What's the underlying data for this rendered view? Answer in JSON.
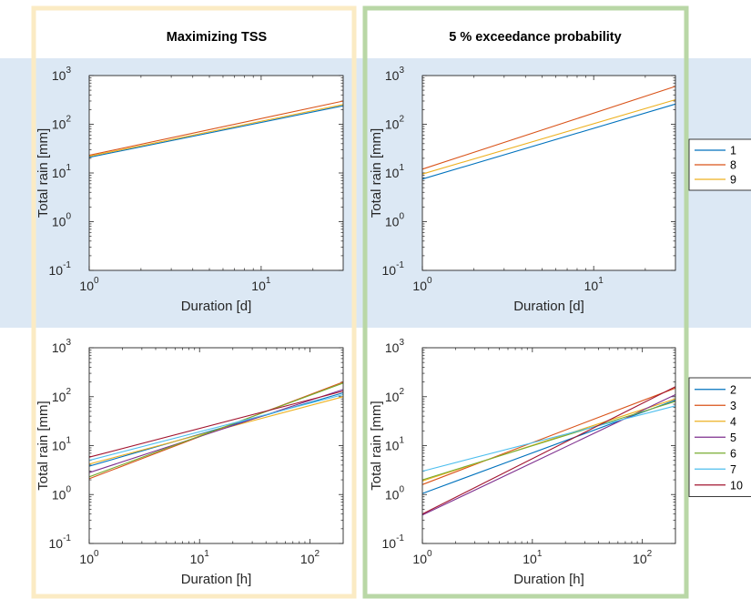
{
  "columns": [
    {
      "title": "Maximizing TSS",
      "frame_color": "#fbebc4"
    },
    {
      "title": "5 % exceedance probability",
      "frame_color": "#b9d7a6"
    }
  ],
  "band_color": "#dce8f4",
  "charts": [
    {
      "id": "tss-daily",
      "type": "line",
      "xscale": "log",
      "yscale": "log",
      "xlabel": "Duration [d]",
      "ylabel": "Total rain [mm]",
      "xlim": [
        1,
        30
      ],
      "ylim": [
        0.1,
        1000
      ],
      "xticks": [
        {
          "v": 1,
          "b": "10",
          "e": "0"
        },
        {
          "v": 10,
          "b": "10",
          "e": "1"
        }
      ],
      "yticks": [
        {
          "v": 0.1,
          "b": "10",
          "e": "-1"
        },
        {
          "v": 1,
          "b": "10",
          "e": "0"
        },
        {
          "v": 10,
          "b": "10",
          "e": "1"
        },
        {
          "v": 100,
          "b": "10",
          "e": "2"
        },
        {
          "v": 1000,
          "b": "10",
          "e": "3"
        }
      ],
      "series": [
        {
          "name": "1",
          "x": [
            1,
            30
          ],
          "y": [
            21,
            240
          ]
        },
        {
          "name": "8",
          "x": [
            1,
            30
          ],
          "y": [
            23,
            300
          ]
        },
        {
          "name": "9",
          "x": [
            1,
            30
          ],
          "y": [
            22,
            255
          ]
        }
      ]
    },
    {
      "id": "exc-daily",
      "type": "line",
      "xscale": "log",
      "yscale": "log",
      "xlabel": "Duration [d]",
      "ylabel": "Total rain [mm]",
      "xlim": [
        1,
        30
      ],
      "ylim": [
        0.1,
        1000
      ],
      "xticks": [
        {
          "v": 1,
          "b": "10",
          "e": "0"
        },
        {
          "v": 10,
          "b": "10",
          "e": "1"
        }
      ],
      "yticks": [
        {
          "v": 0.1,
          "b": "10",
          "e": "-1"
        },
        {
          "v": 1,
          "b": "10",
          "e": "0"
        },
        {
          "v": 10,
          "b": "10",
          "e": "1"
        },
        {
          "v": 100,
          "b": "10",
          "e": "2"
        },
        {
          "v": 1000,
          "b": "10",
          "e": "3"
        }
      ],
      "series": [
        {
          "name": "1",
          "x": [
            1,
            30
          ],
          "y": [
            7.5,
            260
          ]
        },
        {
          "name": "8",
          "x": [
            1,
            30
          ],
          "y": [
            12,
            600
          ]
        },
        {
          "name": "9",
          "x": [
            1,
            30
          ],
          "y": [
            9.5,
            320
          ]
        }
      ]
    },
    {
      "id": "tss-hourly",
      "type": "line",
      "xscale": "log",
      "yscale": "log",
      "xlabel": "Duration [h]",
      "ylabel": "Total rain [mm]",
      "xlim": [
        1,
        200
      ],
      "ylim": [
        0.1,
        1000
      ],
      "xticks": [
        {
          "v": 1,
          "b": "10",
          "e": "0"
        },
        {
          "v": 10,
          "b": "10",
          "e": "1"
        },
        {
          "v": 100,
          "b": "10",
          "e": "2"
        }
      ],
      "yticks": [
        {
          "v": 0.1,
          "b": "10",
          "e": "-1"
        },
        {
          "v": 1,
          "b": "10",
          "e": "0"
        },
        {
          "v": 10,
          "b": "10",
          "e": "1"
        },
        {
          "v": 100,
          "b": "10",
          "e": "2"
        },
        {
          "v": 1000,
          "b": "10",
          "e": "3"
        }
      ],
      "series": [
        {
          "name": "2",
          "x": [
            1,
            200
          ],
          "y": [
            3.8,
            120
          ]
        },
        {
          "name": "3",
          "x": [
            1,
            200
          ],
          "y": [
            2.1,
            200
          ]
        },
        {
          "name": "4",
          "x": [
            1,
            200
          ],
          "y": [
            4.2,
            100
          ]
        },
        {
          "name": "5",
          "x": [
            1,
            200
          ],
          "y": [
            2.8,
            140
          ]
        },
        {
          "name": "6",
          "x": [
            1,
            200
          ],
          "y": [
            2.3,
            190
          ]
        },
        {
          "name": "7",
          "x": [
            1,
            200
          ],
          "y": [
            5.0,
            110
          ]
        },
        {
          "name": "10",
          "x": [
            1,
            200
          ],
          "y": [
            5.8,
            130
          ]
        }
      ]
    },
    {
      "id": "exc-hourly",
      "type": "line",
      "xscale": "log",
      "yscale": "log",
      "xlabel": "Duration [h]",
      "ylabel": "Total rain [mm]",
      "xlim": [
        1,
        200
      ],
      "ylim": [
        0.1,
        1000
      ],
      "xticks": [
        {
          "v": 1,
          "b": "10",
          "e": "0"
        },
        {
          "v": 10,
          "b": "10",
          "e": "1"
        },
        {
          "v": 100,
          "b": "10",
          "e": "2"
        }
      ],
      "yticks": [
        {
          "v": 0.1,
          "b": "10",
          "e": "-1"
        },
        {
          "v": 1,
          "b": "10",
          "e": "0"
        },
        {
          "v": 10,
          "b": "10",
          "e": "1"
        },
        {
          "v": 100,
          "b": "10",
          "e": "2"
        },
        {
          "v": 1000,
          "b": "10",
          "e": "3"
        }
      ],
      "series": [
        {
          "name": "2",
          "x": [
            1,
            200
          ],
          "y": [
            1.05,
            85
          ]
        },
        {
          "name": "3",
          "x": [
            1,
            200
          ],
          "y": [
            1.6,
            150
          ]
        },
        {
          "name": "4",
          "x": [
            1,
            200
          ],
          "y": [
            1.9,
            90
          ]
        },
        {
          "name": "5",
          "x": [
            1,
            200
          ],
          "y": [
            0.38,
            110
          ]
        },
        {
          "name": "6",
          "x": [
            1,
            200
          ],
          "y": [
            2.0,
            80
          ]
        },
        {
          "name": "7",
          "x": [
            1,
            200
          ],
          "y": [
            3.0,
            65
          ]
        },
        {
          "name": "10",
          "x": [
            1,
            200
          ],
          "y": [
            0.4,
            160
          ]
        }
      ]
    }
  ],
  "legends": [
    {
      "entries": [
        "1",
        "8",
        "9"
      ]
    },
    {
      "entries": [
        "2",
        "3",
        "4",
        "5",
        "6",
        "7",
        "10"
      ]
    }
  ],
  "series_colors": {
    "1": "#0072bd",
    "8": "#d95319",
    "9": "#edb120",
    "2": "#0072bd",
    "3": "#d95319",
    "4": "#edb120",
    "5": "#7e2f8e",
    "6": "#77ac30",
    "7": "#4dbeee",
    "10": "#a2142f"
  }
}
